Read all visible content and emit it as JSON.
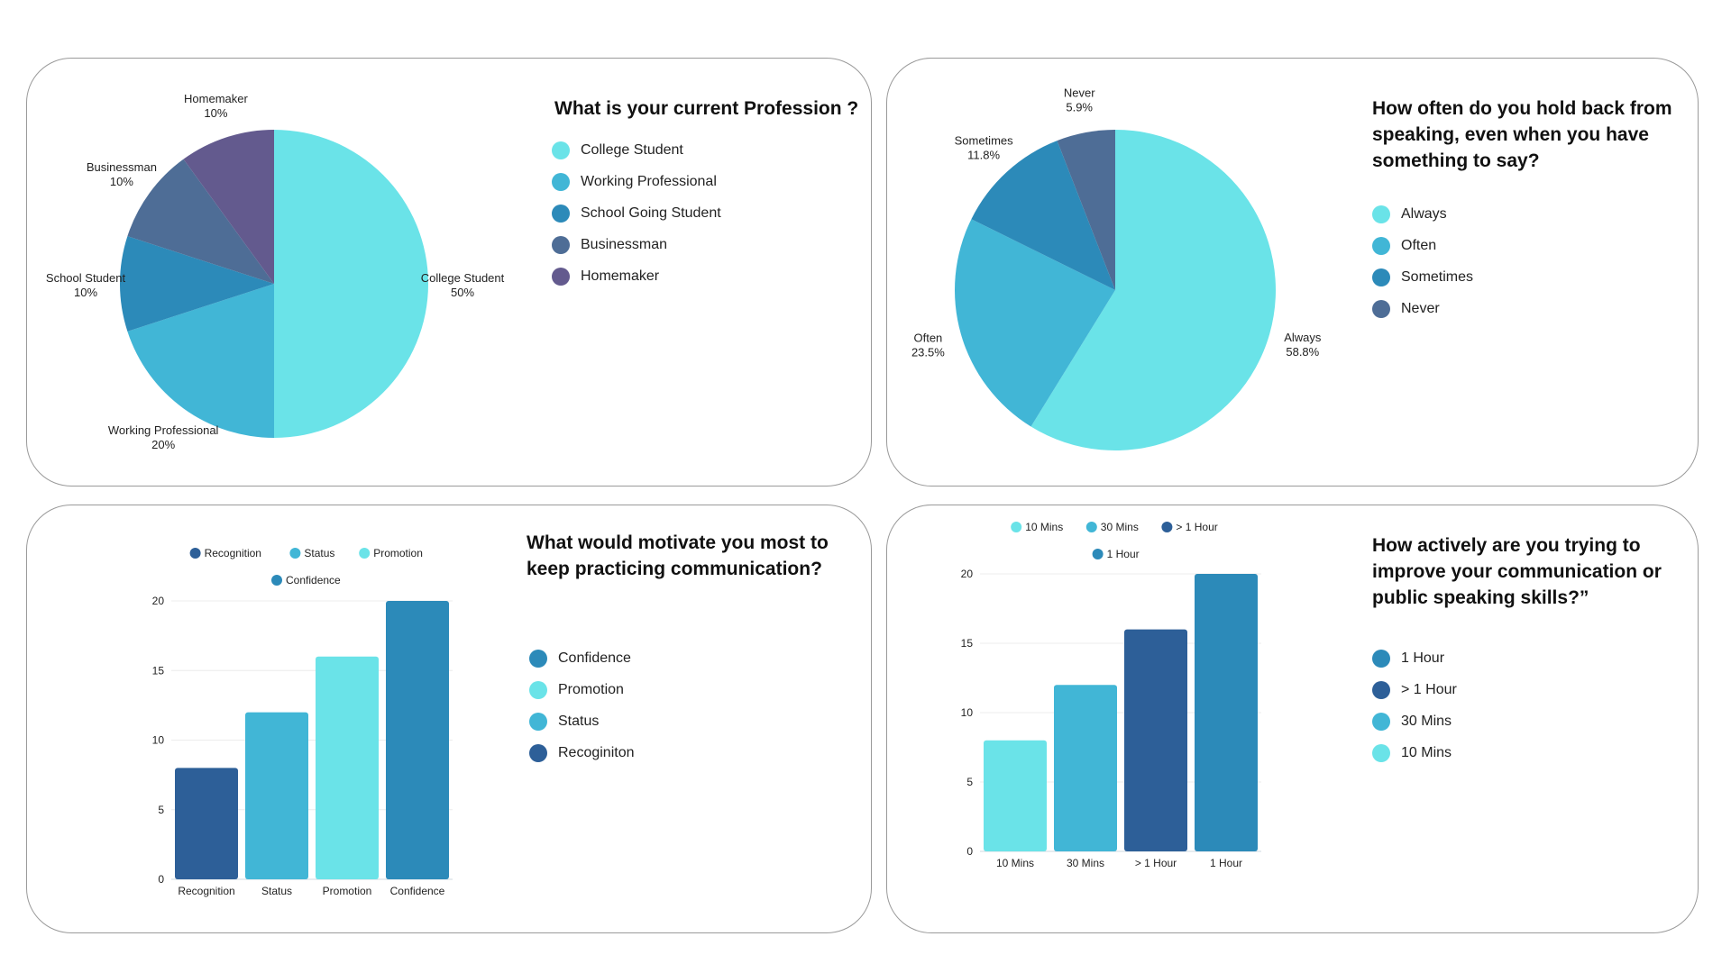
{
  "colors": {
    "cyan": "#6AE3E8",
    "sky": "#41B6D6",
    "blue": "#2C8AB9",
    "slate": "#4E6D96",
    "purple": "#635A8E",
    "navy": "#2D5F98"
  },
  "chart_data": [
    {
      "type": "pie",
      "title": "What is your current Profession ?",
      "slices": [
        {
          "label": "College Student",
          "value": 50,
          "display": "50%",
          "color": "#6AE3E8"
        },
        {
          "label": "Working Professional",
          "value": 20,
          "display": "20%",
          "color": "#41B6D6"
        },
        {
          "label": "School Student",
          "value": 10,
          "display": "10%",
          "color": "#2C8AB9"
        },
        {
          "label": "Businessman",
          "value": 10,
          "display": "10%",
          "color": "#4E6D96"
        },
        {
          "label": "Homemaker",
          "value": 10,
          "display": "10%",
          "color": "#635A8E"
        }
      ],
      "legend": [
        {
          "label": "College Student",
          "color": "#6AE3E8"
        },
        {
          "label": "Working Professional",
          "color": "#41B6D6"
        },
        {
          "label": "School Going Student",
          "color": "#2C8AB9"
        },
        {
          "label": "Businessman",
          "color": "#4E6D96"
        },
        {
          "label": "Homemaker",
          "color": "#635A8E"
        }
      ]
    },
    {
      "type": "pie",
      "title": "How often do you hold back from speaking, even when you have something to say?",
      "slices": [
        {
          "label": "Always",
          "value": 58.8,
          "display": "58.8%",
          "color": "#6AE3E8"
        },
        {
          "label": "Often",
          "value": 23.5,
          "display": "23.5%",
          "color": "#41B6D6"
        },
        {
          "label": "Sometimes",
          "value": 11.8,
          "display": "11.8%",
          "color": "#2C8AB9"
        },
        {
          "label": "Never",
          "value": 5.9,
          "display": "5.9%",
          "color": "#4E6D96"
        }
      ],
      "legend": [
        {
          "label": "Always",
          "color": "#6AE3E8"
        },
        {
          "label": "Often",
          "color": "#41B6D6"
        },
        {
          "label": "Sometimes",
          "color": "#2C8AB9"
        },
        {
          "label": "Never",
          "color": "#4E6D96"
        }
      ]
    },
    {
      "type": "bar",
      "title": "What would motivate you most to keep practicing communication?",
      "categories": [
        "Recognition",
        "Status",
        "Promotion",
        "Confidence"
      ],
      "values": [
        8,
        12,
        16,
        20
      ],
      "bar_colors": [
        "#2D5F98",
        "#41B6D6",
        "#6AE3E8",
        "#2C8AB9"
      ],
      "ylim": [
        0,
        20
      ],
      "yticks": [
        0,
        5,
        10,
        15,
        20
      ],
      "grid": true,
      "top_legend": [
        {
          "label": "Recognition",
          "color": "#2D5F98"
        },
        {
          "label": "Status",
          "color": "#41B6D6"
        },
        {
          "label": "Promotion",
          "color": "#6AE3E8"
        },
        {
          "label": "Confidence",
          "color": "#2C8AB9"
        }
      ],
      "legend": [
        {
          "label": "Confidence",
          "color": "#2C8AB9"
        },
        {
          "label": "Promotion",
          "color": "#6AE3E8"
        },
        {
          "label": "Status",
          "color": "#41B6D6"
        },
        {
          "label": "Recoginiton",
          "color": "#2D5F98"
        }
      ]
    },
    {
      "type": "bar",
      "title": "How actively are you trying to improve your communication or public speaking skills?”",
      "categories": [
        "10 Mins",
        "30 Mins",
        "> 1 Hour",
        "1 Hour"
      ],
      "values": [
        8,
        12,
        16,
        20
      ],
      "bar_colors": [
        "#6AE3E8",
        "#41B6D6",
        "#2D5F98",
        "#2C8AB9"
      ],
      "ylim": [
        0,
        20
      ],
      "yticks": [
        0,
        5,
        10,
        15,
        20
      ],
      "grid": true,
      "top_legend": [
        {
          "label": "10 Mins",
          "color": "#6AE3E8"
        },
        {
          "label": "30 Mins",
          "color": "#41B6D6"
        },
        {
          "label": "> 1 Hour",
          "color": "#2D5F98"
        },
        {
          "label": "1 Hour",
          "color": "#2C8AB9"
        }
      ],
      "legend": [
        {
          "label": "1 Hour",
          "color": "#2C8AB9"
        },
        {
          "label": "> 1 Hour",
          "color": "#2D5F98"
        },
        {
          "label": "30 Mins",
          "color": "#41B6D6"
        },
        {
          "label": "10 Mins",
          "color": "#6AE3E8"
        }
      ]
    }
  ]
}
